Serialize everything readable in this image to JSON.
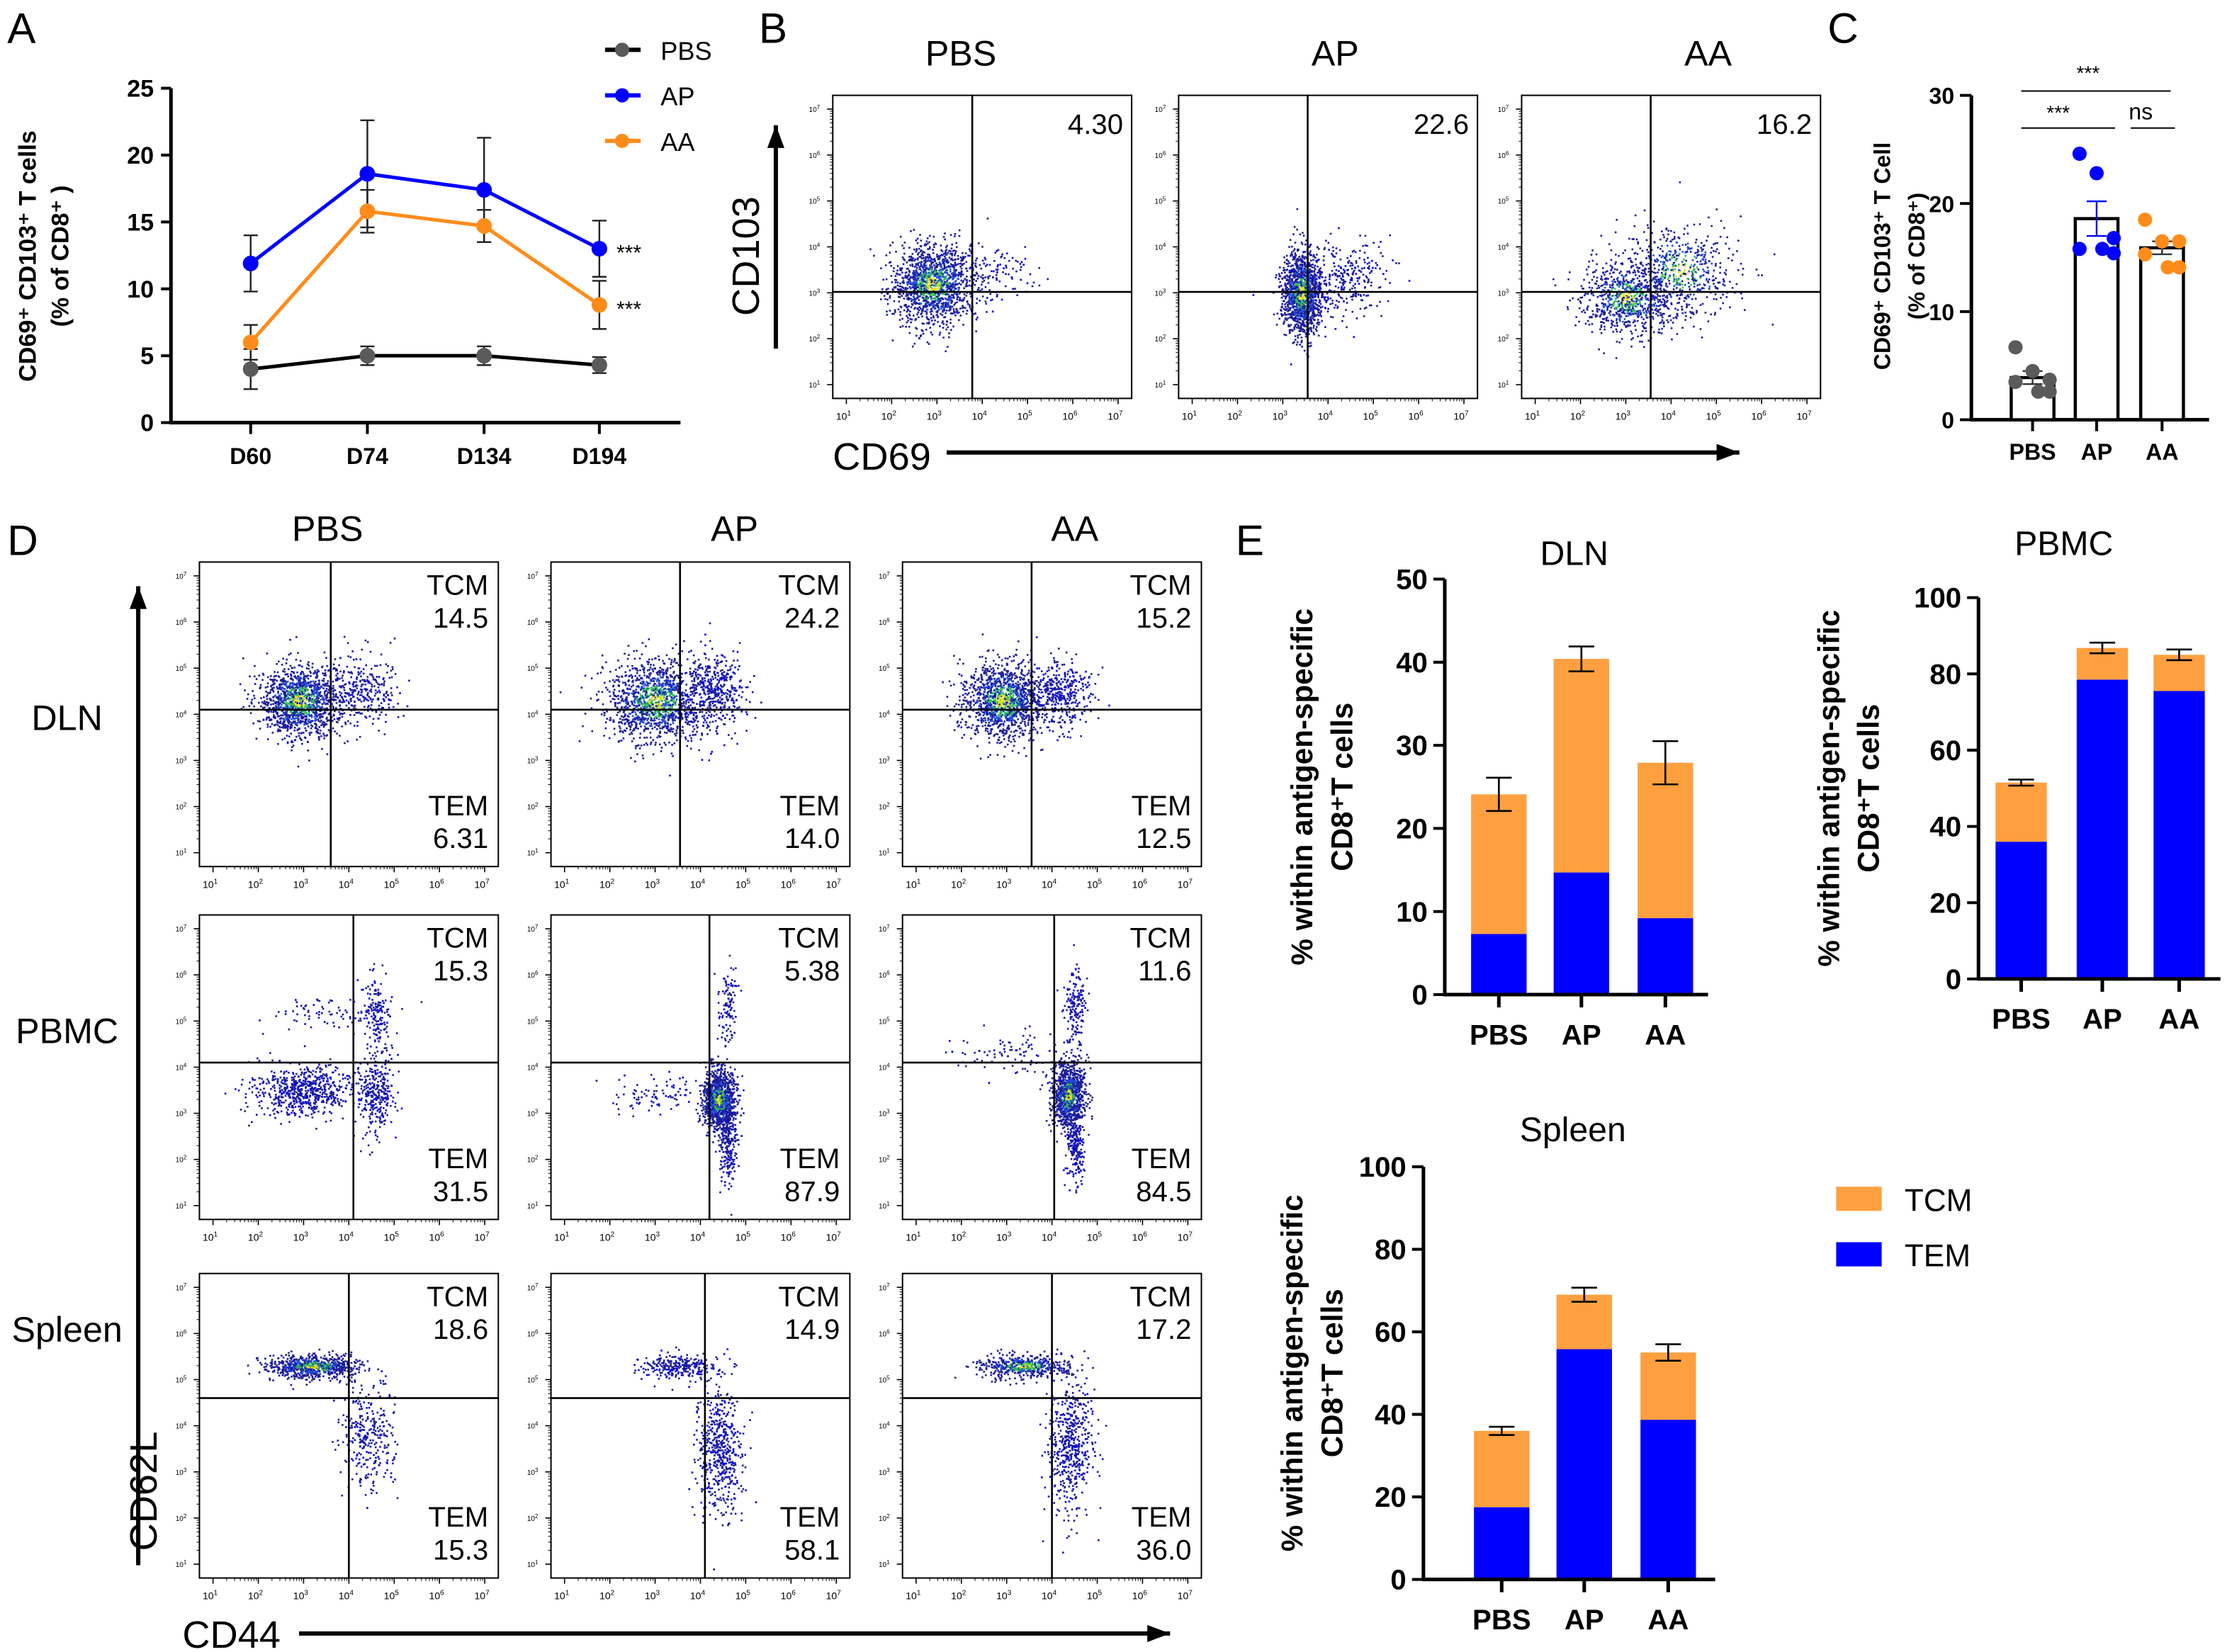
{
  "panel_labels": {
    "a": "A",
    "b": "B",
    "c": "C",
    "d": "D",
    "e": "E"
  },
  "colors": {
    "PBS": "#5a5a5a",
    "AP": "#0000ff",
    "AA": "#ff8c1a",
    "TCM": "#ffa040",
    "TEM": "#0000ff"
  },
  "chart_data": [
    {
      "panel": "A",
      "type": "line",
      "ylabel": [
        "CD69⁺ CD103⁺ T cells",
        "(% of CD8⁺ )"
      ],
      "categories": [
        "D60",
        "D74",
        "D134",
        "D194"
      ],
      "ylim": [
        0,
        25
      ],
      "yticks": [
        "0",
        "5",
        "10",
        "15",
        "20",
        "25"
      ],
      "legend_position": "top-right",
      "series": [
        {
          "name": "PBS",
          "values": [
            4.0,
            5.0,
            5.0,
            4.3
          ],
          "error": [
            1.5,
            0.7,
            0.7,
            0.6
          ],
          "annotation": ""
        },
        {
          "name": "AP",
          "values": [
            11.9,
            18.6,
            17.4,
            13.0
          ],
          "error": [
            2.1,
            4.0,
            3.9,
            2.1
          ],
          "annotation": "***"
        },
        {
          "name": "AA",
          "values": [
            6.0,
            15.8,
            14.7,
            8.8
          ],
          "error": [
            1.3,
            1.6,
            1.2,
            1.8
          ],
          "annotation": "***"
        }
      ]
    },
    {
      "panel": "C",
      "type": "bar",
      "ylabel": [
        "CD69⁺ CD103⁺ T Cell",
        "(% of CD8⁺)"
      ],
      "categories": [
        "PBS",
        "AP",
        "AA"
      ],
      "ylim": [
        0,
        30
      ],
      "yticks": [
        "0",
        "10",
        "20",
        "30"
      ],
      "values": [
        3.9,
        18.6,
        15.9
      ],
      "sem": [
        0.6,
        1.6,
        0.6
      ],
      "points": [
        [
          6.7,
          4.5,
          3.7,
          3.5,
          2.6,
          2.6
        ],
        [
          24.6,
          22.8,
          16.8,
          15.8,
          15.4,
          15.8
        ],
        [
          18.5,
          16.5,
          16.5,
          15.3,
          14.1,
          14.1
        ]
      ],
      "significance": [
        {
          "pair": [
            "PBS",
            "AA"
          ],
          "label": "***"
        },
        {
          "pair": [
            "PBS",
            "AP"
          ],
          "label": "***"
        },
        {
          "pair": [
            "AP",
            "AA"
          ],
          "label": "ns"
        }
      ]
    },
    {
      "panel": "E",
      "title": "DLN",
      "type": "bar",
      "stacked": true,
      "ylabel": [
        "% within antigen-specific",
        "CD8⁺T cells"
      ],
      "categories": [
        "PBS",
        "AP",
        "AA"
      ],
      "ylim": [
        0,
        50
      ],
      "yticks": [
        "0",
        "10",
        "20",
        "30",
        "40",
        "50"
      ],
      "series": [
        {
          "name": "TEM",
          "values": [
            7.3,
            14.7,
            9.2
          ]
        },
        {
          "name": "TCM",
          "values": [
            16.8,
            25.7,
            18.7
          ]
        }
      ],
      "total_error": [
        2.0,
        1.5,
        2.6
      ]
    },
    {
      "panel": "E",
      "title": "PBMC",
      "type": "bar",
      "stacked": true,
      "ylabel": [
        "% within antigen-specific",
        "CD8⁺T cells"
      ],
      "categories": [
        "PBS",
        "AP",
        "AA"
      ],
      "ylim": [
        0,
        100
      ],
      "yticks": [
        "0",
        "20",
        "40",
        "60",
        "80",
        "100"
      ],
      "series": [
        {
          "name": "TEM",
          "values": [
            36.0,
            78.5,
            75.5
          ]
        },
        {
          "name": "TCM",
          "values": [
            15.5,
            8.3,
            9.5
          ]
        }
      ],
      "total_error": [
        0.8,
        1.4,
        1.4
      ]
    },
    {
      "panel": "E",
      "title": "Spleen",
      "type": "bar",
      "stacked": true,
      "ylabel": [
        "% within antigen-specific",
        "CD8⁺T cells"
      ],
      "categories": [
        "PBS",
        "AP",
        "AA"
      ],
      "ylim": [
        0,
        100
      ],
      "yticks": [
        "0",
        "20",
        "40",
        "60",
        "80",
        "100"
      ],
      "series": [
        {
          "name": "TEM",
          "values": [
            17.5,
            55.8,
            38.7
          ]
        },
        {
          "name": "TCM",
          "values": [
            18.5,
            13.2,
            16.3
          ]
        }
      ],
      "total_error": [
        1.0,
        1.7,
        2.0
      ]
    }
  ],
  "legend_e": [
    "TCM",
    "TEM"
  ],
  "flow_axis": {
    "base": "10",
    "exponents": [
      "1",
      "2",
      "3",
      "4",
      "5",
      "6",
      "7"
    ]
  },
  "panel_b": {
    "x_label": "CD69",
    "y_label": "CD103",
    "plots": [
      {
        "group": "PBS",
        "q_upper_right": "4.30"
      },
      {
        "group": "AP",
        "q_upper_right": "22.6"
      },
      {
        "group": "AA",
        "q_upper_right": "16.2"
      }
    ]
  },
  "panel_d": {
    "x_label": "CD44",
    "y_label": "CD62L",
    "columns": [
      "PBS",
      "AP",
      "AA"
    ],
    "rows": [
      {
        "tissue": "DLN",
        "plots": [
          {
            "TCM": "14.5",
            "TEM": "6.31"
          },
          {
            "TCM": "24.2",
            "TEM": "14.0"
          },
          {
            "TCM": "15.2",
            "TEM": "12.5"
          }
        ]
      },
      {
        "tissue": "PBMC",
        "plots": [
          {
            "TCM": "15.3",
            "TEM": "31.5"
          },
          {
            "TCM": "5.38",
            "TEM": "87.9"
          },
          {
            "TCM": "11.6",
            "TEM": "84.5"
          }
        ]
      },
      {
        "tissue": "Spleen",
        "plots": [
          {
            "TCM": "18.6",
            "TEM": "15.3"
          },
          {
            "TCM": "14.9",
            "TEM": "58.1"
          },
          {
            "TCM": "17.2",
            "TEM": "36.0"
          }
        ]
      }
    ],
    "gate_labels": {
      "upper": "TCM",
      "lower": "TEM"
    }
  }
}
